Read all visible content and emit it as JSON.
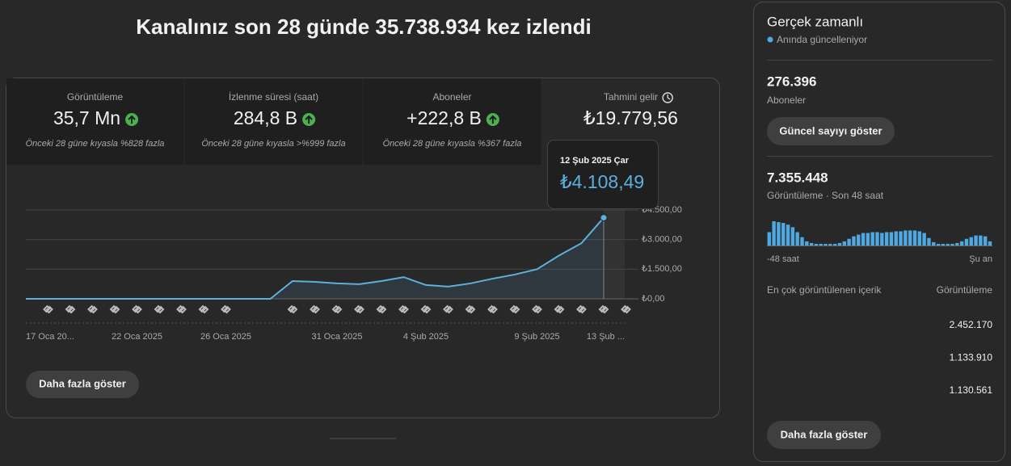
{
  "header": {
    "title": "Kanalınız son 28 günde 35.738.934 kez izlendi"
  },
  "metrics": [
    {
      "label": "Görüntüleme",
      "value": "35,7 Mn",
      "comparison": "Önceki 28 güne kıyasla %828 fazla"
    },
    {
      "label": "İzlenme süresi (saat)",
      "value": "284,8 B",
      "comparison": "Önceki 28 güne kıyasla >%999 fazla"
    },
    {
      "label": "Aboneler",
      "value": "+222,8 B",
      "comparison": "Önceki 28 güne kıyasla %367 fazla"
    },
    {
      "label": "Tahmini gelir",
      "value": "₺19.779,56"
    }
  ],
  "chart_data": {
    "type": "line",
    "color": "#5eb0dc",
    "categories": [
      "17 Oca 20...",
      null,
      null,
      null,
      null,
      "22 Oca 2025",
      null,
      null,
      null,
      "26 Oca 2025",
      null,
      null,
      null,
      null,
      "31 Oca 2025",
      null,
      null,
      null,
      "4 Şub 2025",
      null,
      null,
      null,
      null,
      "9 Şub 2025",
      null,
      null,
      null,
      "13 Şub ..."
    ],
    "values": [
      0,
      0,
      0,
      0,
      0,
      0,
      0,
      0,
      0,
      0,
      0,
      0,
      900,
      860,
      780,
      740,
      900,
      1100,
      700,
      620,
      780,
      1020,
      1230,
      1500,
      2200,
      2820,
      4108.49,
      null
    ],
    "value_labels": [
      null,
      null,
      null,
      null,
      null,
      null,
      null,
      null,
      null,
      null,
      null,
      null,
      null,
      null,
      null,
      null,
      null,
      null,
      null,
      null,
      null,
      null,
      null,
      null,
      null,
      null,
      "₺4.108,49",
      null
    ],
    "tooltip_date": "12 Şub 2025 Çar",
    "ylim": [
      0,
      4500
    ],
    "yticks": [
      {
        "value": 0,
        "label": "₺0,00"
      },
      {
        "value": 1500,
        "label": "₺1.500,00"
      },
      {
        "value": 3000,
        "label": "₺3.000,00"
      },
      {
        "value": 4500,
        "label": "₺4.500,00"
      }
    ],
    "grid": true
  },
  "more_button": "Daha fazla göster",
  "realtime": {
    "title": "Gerçek zamanlı",
    "status": "Anında güncelleniyor",
    "subscribers": "276.396",
    "subscribers_label": "Aboneler",
    "subscribers_button": "Güncel sayıyı göster",
    "views": "7.355.448",
    "views_label": "Görüntüleme · Son 48 saat",
    "bars": {
      "type": "bar",
      "color": "#4fa9e0",
      "values": [
        208000,
        377000,
        364000,
        351000,
        325000,
        286000,
        208000,
        130000,
        65000,
        39000,
        26000,
        26000,
        26000,
        26000,
        26000,
        39000,
        65000,
        104000,
        143000,
        169000,
        195000,
        195000,
        208000,
        208000,
        195000,
        208000,
        208000,
        221000,
        221000,
        234000,
        234000,
        234000,
        221000,
        195000,
        117000,
        52000,
        26000,
        26000,
        26000,
        26000,
        39000,
        65000,
        104000,
        130000,
        156000,
        156000,
        143000,
        65000
      ]
    },
    "start_label": "-48 saat",
    "end_label": "Şu an",
    "top_content_label": "En çok görüntülenen içerik",
    "top_views_label": "Görüntüleme",
    "top_views": [
      "2.452.170",
      "1.133.910",
      "1.130.561"
    ],
    "more_button": "Daha fazla göster"
  }
}
